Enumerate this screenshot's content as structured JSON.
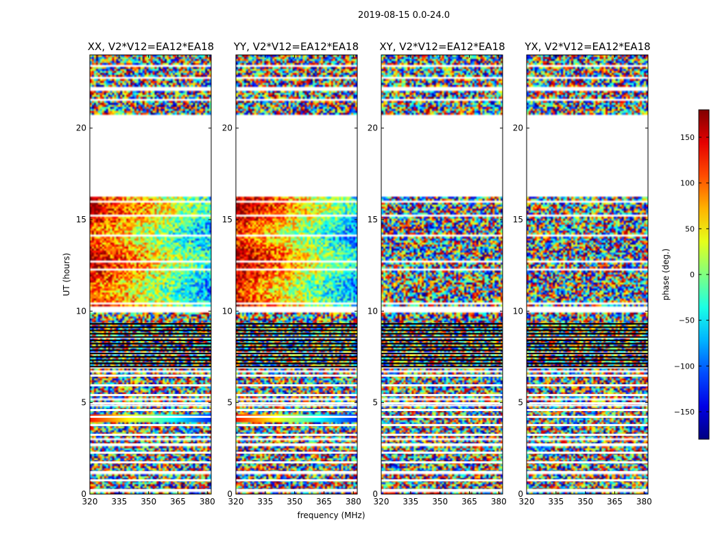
{
  "chart_data": {
    "type": "heatmap",
    "suptitle": "2019-08-15 0.0-24.0",
    "xlabel": "frequency (MHz)",
    "ylabel": "UT (hours)",
    "xlim": [
      320,
      382
    ],
    "ylim": [
      0,
      24
    ],
    "xticks": [
      320,
      335,
      350,
      365,
      380
    ],
    "yticks": [
      0,
      5,
      10,
      15,
      20
    ],
    "colorbar": {
      "label": "phase (deg.)",
      "range": [
        -180,
        180
      ],
      "ticks": [
        150,
        100,
        50,
        0,
        -50,
        -100,
        -150
      ],
      "tick_labels": [
        "150",
        "100",
        "50",
        "0",
        "−50",
        "−100",
        "−150"
      ],
      "colormap": "jet"
    },
    "gaps_hours": [
      [
        16.3,
        20.7
      ],
      [
        22.0,
        22.2
      ],
      [
        9.9,
        10.1
      ]
    ],
    "panels": [
      {
        "title": "XX, V2*V12=EA12*EA18",
        "coherent": true,
        "strength": 0.9
      },
      {
        "title": "YY, V2*V12=EA12*EA18",
        "coherent": true,
        "strength": 1.0
      },
      {
        "title": "XY, V2*V12=EA12*EA18",
        "coherent": false,
        "strength": 0.0
      },
      {
        "title": "YX, V2*V12=EA12*EA18",
        "coherent": false,
        "strength": 0.0
      }
    ]
  }
}
